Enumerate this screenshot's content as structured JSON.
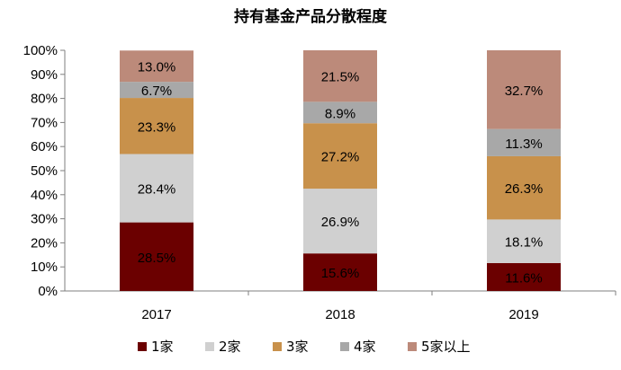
{
  "chart_data": {
    "type": "bar",
    "stacked": true,
    "title": "持有基金产品分散程度",
    "categories": [
      "2017",
      "2018",
      "2019"
    ],
    "series": [
      {
        "name": "1家",
        "color": "#6b0000",
        "values": [
          28.5,
          15.6,
          11.6
        ],
        "labels": [
          "28.5%",
          "15.6%",
          "11.6%"
        ]
      },
      {
        "name": "2家",
        "color": "#d0d0d0",
        "values": [
          28.4,
          26.9,
          18.1
        ],
        "labels": [
          "28.4%",
          "26.9%",
          "18.1%"
        ]
      },
      {
        "name": "3家",
        "color": "#c8914b",
        "values": [
          23.3,
          27.2,
          26.3
        ],
        "labels": [
          "23.3%",
          "27.2%",
          "26.3%"
        ]
      },
      {
        "name": "4家",
        "color": "#a8a8a8",
        "values": [
          6.7,
          8.9,
          11.3
        ],
        "labels": [
          "6.7%",
          "8.9%",
          "11.3%"
        ]
      },
      {
        "name": "5家以上",
        "color": "#bc8a7a",
        "values": [
          13.0,
          21.5,
          32.7
        ],
        "labels": [
          "13.0%",
          "21.5%",
          "32.7%"
        ]
      }
    ],
    "ylim": [
      0,
      100
    ],
    "yticks": [
      "0%",
      "10%",
      "20%",
      "30%",
      "40%",
      "50%",
      "60%",
      "70%",
      "80%",
      "90%",
      "100%"
    ],
    "xlabel": "",
    "ylabel": "",
    "legend": "bottom",
    "grid": false
  }
}
